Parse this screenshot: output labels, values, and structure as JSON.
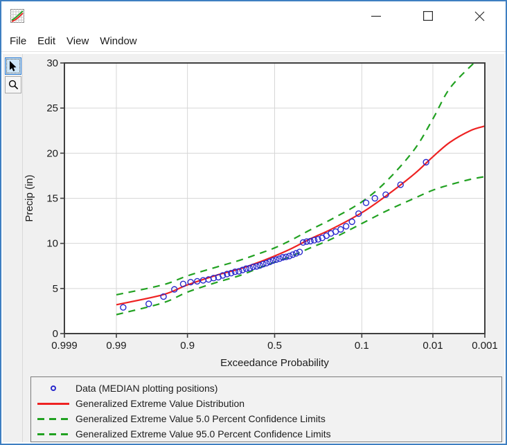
{
  "window": {
    "title": "",
    "controls": {
      "minimize": "minimize",
      "maximize": "maximize",
      "close": "close"
    }
  },
  "menu": {
    "items": [
      "File",
      "Edit",
      "View",
      "Window"
    ]
  },
  "toolbar": {
    "tools": [
      "pointer",
      "zoom"
    ],
    "selected": "pointer"
  },
  "chart_data": {
    "type": "line",
    "title": "",
    "x_axis": {
      "label": "Exceedance Probability",
      "scale": "normal-probability",
      "range": [
        0.999,
        0.001
      ],
      "ticks": [
        0.999,
        0.99,
        0.9,
        0.5,
        0.1,
        0.01,
        0.001
      ],
      "tick_labels": [
        "0.999",
        "0.99",
        "0.9",
        "0.5",
        "0.1",
        "0.01",
        "0.001"
      ]
    },
    "y_axis": {
      "label": "Precip (in)",
      "range": [
        0,
        30
      ],
      "ticks": [
        0,
        5,
        10,
        15,
        20,
        25,
        30
      ],
      "tick_labels": [
        "0",
        "5",
        "10",
        "15",
        "20",
        "25",
        "30"
      ]
    },
    "grid": true,
    "legend_position": "bottom",
    "colors": {
      "frame": "#3f3f3f",
      "grid": "#d6d6d6",
      "plot_bg": "#ffffff",
      "text": "#1b1b1b"
    },
    "series": [
      {
        "name": "Data (MEDIAN plotting positions)",
        "type": "scatter",
        "marker": "open-circle",
        "color": "#2929cc",
        "points": [
          [
            0.013,
            19.0
          ],
          [
            0.0321,
            16.5
          ],
          [
            0.0512,
            15.4
          ],
          [
            0.0703,
            15.0
          ],
          [
            0.0894,
            14.5
          ],
          [
            0.1085,
            13.3
          ],
          [
            0.1277,
            12.4
          ],
          [
            0.1467,
            11.9
          ],
          [
            0.1658,
            11.55
          ],
          [
            0.1849,
            11.3
          ],
          [
            0.204,
            11.1
          ],
          [
            0.2231,
            10.85
          ],
          [
            0.2422,
            10.6
          ],
          [
            0.2613,
            10.45
          ],
          [
            0.2804,
            10.35
          ],
          [
            0.2995,
            10.25
          ],
          [
            0.3186,
            10.2
          ],
          [
            0.3377,
            10.1
          ],
          [
            0.3568,
            9.05
          ],
          [
            0.3759,
            8.9
          ],
          [
            0.395,
            8.75
          ],
          [
            0.4141,
            8.6
          ],
          [
            0.4332,
            8.5
          ],
          [
            0.4523,
            8.45
          ],
          [
            0.4714,
            8.3
          ],
          [
            0.4905,
            8.2
          ],
          [
            0.5095,
            8.1
          ],
          [
            0.5286,
            7.95
          ],
          [
            0.5477,
            7.8
          ],
          [
            0.5668,
            7.7
          ],
          [
            0.5859,
            7.55
          ],
          [
            0.605,
            7.45
          ],
          [
            0.6241,
            7.4
          ],
          [
            0.6432,
            7.25
          ],
          [
            0.6623,
            7.2
          ],
          [
            0.6814,
            7.05
          ],
          [
            0.7005,
            6.9
          ],
          [
            0.7196,
            6.85
          ],
          [
            0.7387,
            6.7
          ],
          [
            0.7578,
            6.6
          ],
          [
            0.7769,
            6.45
          ],
          [
            0.796,
            6.25
          ],
          [
            0.8151,
            6.15
          ],
          [
            0.8342,
            6.0
          ],
          [
            0.8533,
            5.9
          ],
          [
            0.8724,
            5.8
          ],
          [
            0.8915,
            5.7
          ],
          [
            0.9106,
            5.5
          ],
          [
            0.9297,
            4.9
          ],
          [
            0.9488,
            4.1
          ],
          [
            0.9679,
            3.3
          ],
          [
            0.987,
            2.9
          ]
        ]
      },
      {
        "name": "Generalized Extreme Value Distribution",
        "type": "line",
        "style": "solid",
        "color": "#ee2222",
        "points": [
          [
            0.99,
            3.2
          ],
          [
            0.95,
            4.3
          ],
          [
            0.9,
            5.4
          ],
          [
            0.8,
            6.5
          ],
          [
            0.7,
            7.15
          ],
          [
            0.6,
            7.85
          ],
          [
            0.5,
            8.6
          ],
          [
            0.4,
            9.45
          ],
          [
            0.3,
            10.5
          ],
          [
            0.2,
            11.6
          ],
          [
            0.1,
            13.4
          ],
          [
            0.05,
            15.3
          ],
          [
            0.02,
            17.7
          ],
          [
            0.01,
            19.6
          ],
          [
            0.005,
            21.2
          ],
          [
            0.002,
            22.5
          ],
          [
            0.001,
            23.0
          ]
        ]
      },
      {
        "name": "Generalized Extreme Value 5.0 Percent Confidence Limits",
        "type": "line",
        "style": "dashed",
        "color": "#21a121",
        "points": [
          [
            0.99,
            4.3
          ],
          [
            0.95,
            5.4
          ],
          [
            0.9,
            6.4
          ],
          [
            0.8,
            7.4
          ],
          [
            0.7,
            8.1
          ],
          [
            0.6,
            8.8
          ],
          [
            0.5,
            9.5
          ],
          [
            0.4,
            10.4
          ],
          [
            0.3,
            11.5
          ],
          [
            0.2,
            12.7
          ],
          [
            0.1,
            14.6
          ],
          [
            0.05,
            16.9
          ],
          [
            0.02,
            20.4
          ],
          [
            0.01,
            23.8
          ],
          [
            0.005,
            27.2
          ],
          [
            0.0017,
            30.0
          ]
        ]
      },
      {
        "name": "Generalized Extreme Value 95.0 Percent Confidence Limits",
        "type": "line",
        "style": "dashed",
        "color": "#21a121",
        "points": [
          [
            0.99,
            2.1
          ],
          [
            0.95,
            3.4
          ],
          [
            0.9,
            4.6
          ],
          [
            0.8,
            5.7
          ],
          [
            0.7,
            6.4
          ],
          [
            0.6,
            7.2
          ],
          [
            0.5,
            7.9
          ],
          [
            0.4,
            8.6
          ],
          [
            0.3,
            9.5
          ],
          [
            0.2,
            10.5
          ],
          [
            0.1,
            12.2
          ],
          [
            0.05,
            13.6
          ],
          [
            0.02,
            15.0
          ],
          [
            0.01,
            15.9
          ],
          [
            0.005,
            16.5
          ],
          [
            0.002,
            17.1
          ],
          [
            0.001,
            17.4
          ]
        ]
      }
    ]
  }
}
